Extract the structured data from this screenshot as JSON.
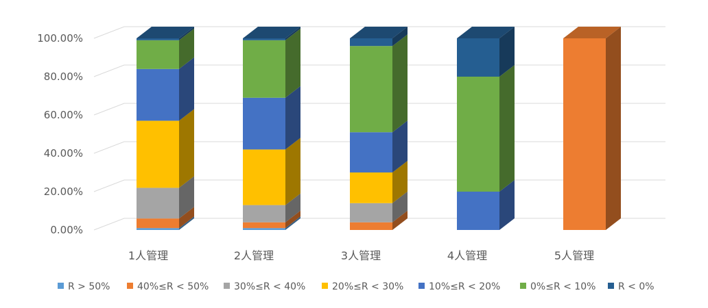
{
  "chart_data": {
    "type": "bar",
    "stacked": "percent",
    "three_d": true,
    "categories": [
      "1人管理",
      "2人管理",
      "3人管理",
      "4人管理",
      "5人管理"
    ],
    "y_ticks": [
      "0.00%",
      "20.00%",
      "40.00%",
      "60.00%",
      "80.00%",
      "100.00%"
    ],
    "ylim": [
      0,
      100
    ],
    "grid": true,
    "legend_position": "bottom",
    "series": [
      {
        "name": "R > 50%",
        "color": "#5B9BD5",
        "values": [
          1,
          1,
          0,
          0,
          0
        ]
      },
      {
        "name": "40%≤R < 50%",
        "color": "#ED7D31",
        "values": [
          5,
          3,
          4,
          0,
          100
        ]
      },
      {
        "name": "30%≤R < 40%",
        "color": "#A5A5A5",
        "values": [
          16,
          9,
          10,
          0,
          0
        ]
      },
      {
        "name": "20%≤R < 30%",
        "color": "#FFC000",
        "values": [
          35,
          29,
          16,
          0,
          0
        ]
      },
      {
        "name": "10%≤R < 20%",
        "color": "#4472C4",
        "values": [
          27,
          27,
          21,
          20,
          0
        ]
      },
      {
        "name": "0%≤R < 10%",
        "color": "#70AD47",
        "values": [
          15,
          30,
          45,
          60,
          0
        ]
      },
      {
        "name": "R < 0%",
        "color": "#255E91",
        "values": [
          1,
          1,
          4,
          20,
          0
        ]
      }
    ]
  }
}
